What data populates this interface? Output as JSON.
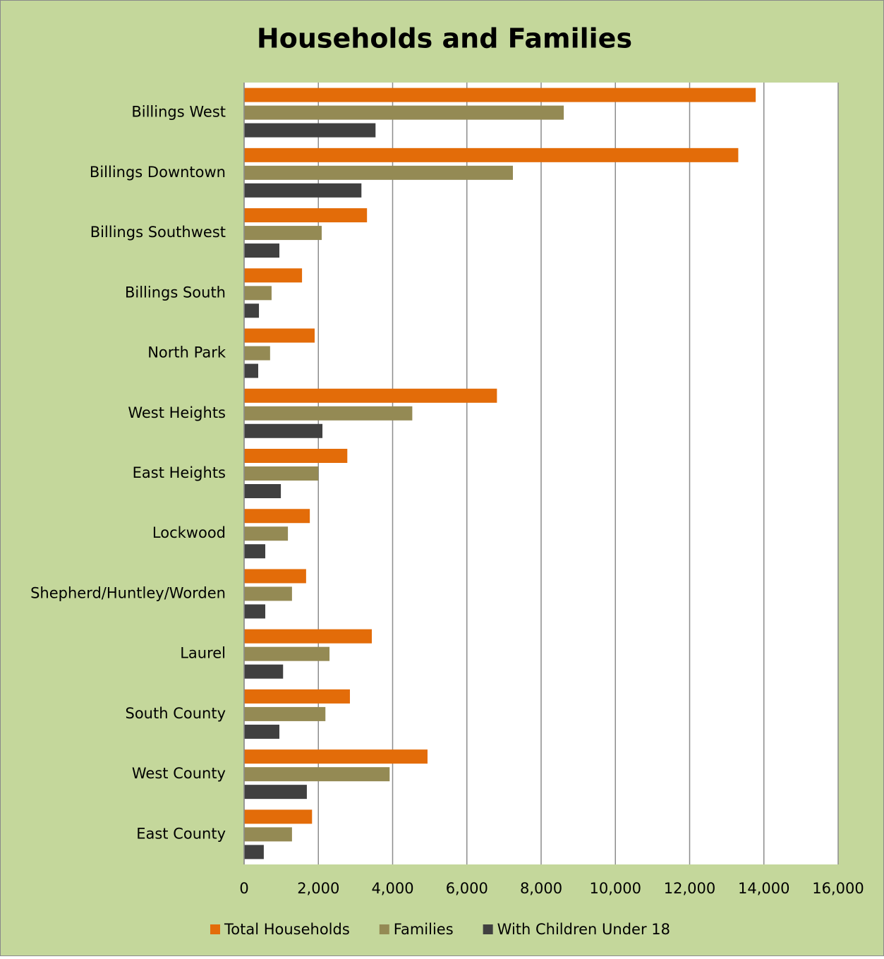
{
  "chart_data": {
    "type": "bar",
    "orientation": "horizontal",
    "title": "Households and Families",
    "categories": [
      "Billings West",
      "Billings Downtown",
      "Billings Southwest",
      "Billings South",
      "North Park",
      "West Heights",
      "East Heights",
      "Lockwood",
      "Shepherd/Huntley/Worden",
      "Laurel",
      "South County",
      "West County",
      "East County"
    ],
    "series": [
      {
        "name": "Total Households",
        "color": "#e36c09",
        "values": [
          13780,
          13310,
          3310,
          1560,
          1900,
          6810,
          2780,
          1770,
          1670,
          3440,
          2850,
          4940,
          1830
        ]
      },
      {
        "name": "Families",
        "color": "#948a54",
        "values": [
          8610,
          7240,
          2090,
          740,
          700,
          4530,
          2000,
          1180,
          1290,
          2300,
          2190,
          3920,
          1290
        ]
      },
      {
        "name": "With Children Under 18",
        "color": "#404040",
        "values": [
          3540,
          3160,
          950,
          400,
          380,
          2110,
          990,
          570,
          570,
          1050,
          950,
          1690,
          530
        ]
      }
    ],
    "xlim": [
      0,
      16000
    ],
    "xticks": [
      0,
      {
        "value": 2000,
        "label": "2,000"
      },
      {
        "value": 4000,
        "label": "4,000"
      },
      {
        "value": 6000,
        "label": "6,000"
      },
      {
        "value": 8000,
        "label": "8,000"
      },
      {
        "value": 10000,
        "label": "10,000"
      },
      {
        "value": 12000,
        "label": "12,000"
      },
      {
        "value": 14000,
        "label": "14,000"
      },
      {
        "value": 16000,
        "label": "16,000"
      }
    ],
    "grid": true,
    "legend": "bottom"
  }
}
